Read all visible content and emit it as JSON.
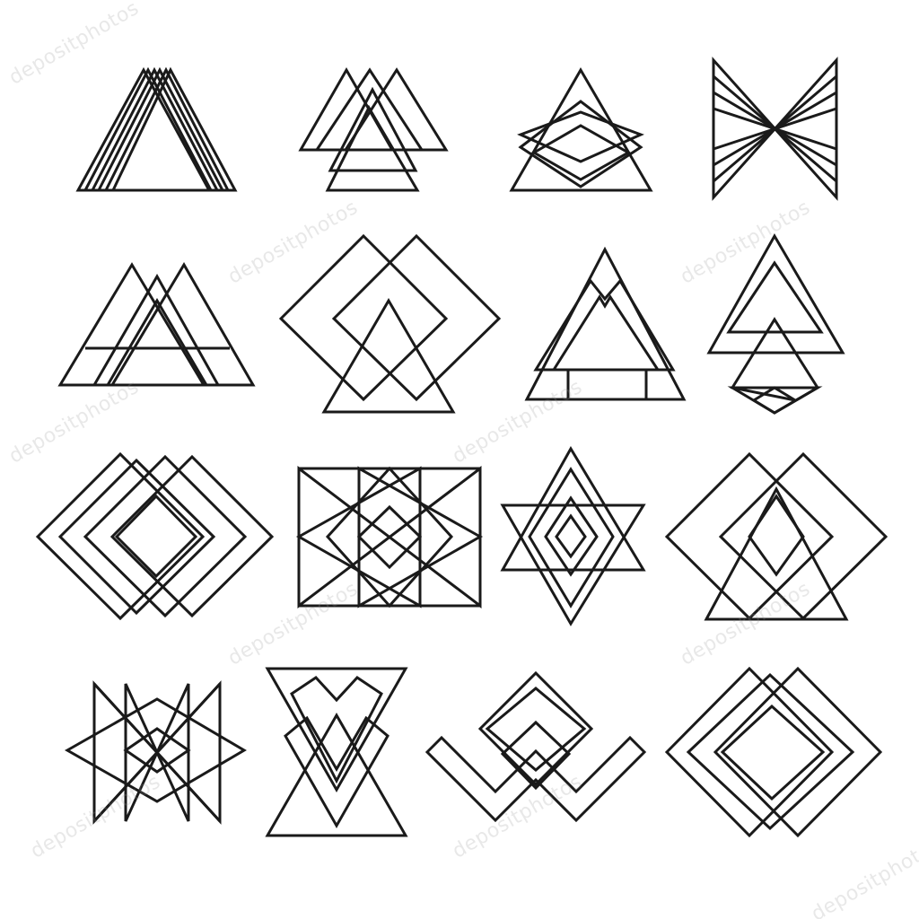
{
  "watermark": {
    "text": "depositphotos"
  },
  "style": {
    "stroke_color": "#1a1a1a",
    "background": "#ffffff",
    "watermark_color": "#969696"
  },
  "icons": [
    {
      "name": "icon-stacked-triangles"
    },
    {
      "name": "icon-interlocked-triangles"
    },
    {
      "name": "icon-triangle-diamond"
    },
    {
      "name": "icon-bowtie-lattice"
    },
    {
      "name": "icon-mountain-triangles"
    },
    {
      "name": "icon-twin-diamonds"
    },
    {
      "name": "icon-notched-triangle"
    },
    {
      "name": "icon-triangle-arrowhead"
    },
    {
      "name": "icon-offset-diamonds"
    },
    {
      "name": "icon-triangle-lattice"
    },
    {
      "name": "icon-hexagram"
    },
    {
      "name": "icon-diamond-triangle"
    },
    {
      "name": "icon-star-lattice"
    },
    {
      "name": "icon-hourglass"
    },
    {
      "name": "icon-chevron-wave"
    },
    {
      "name": "icon-nested-diamonds"
    }
  ]
}
